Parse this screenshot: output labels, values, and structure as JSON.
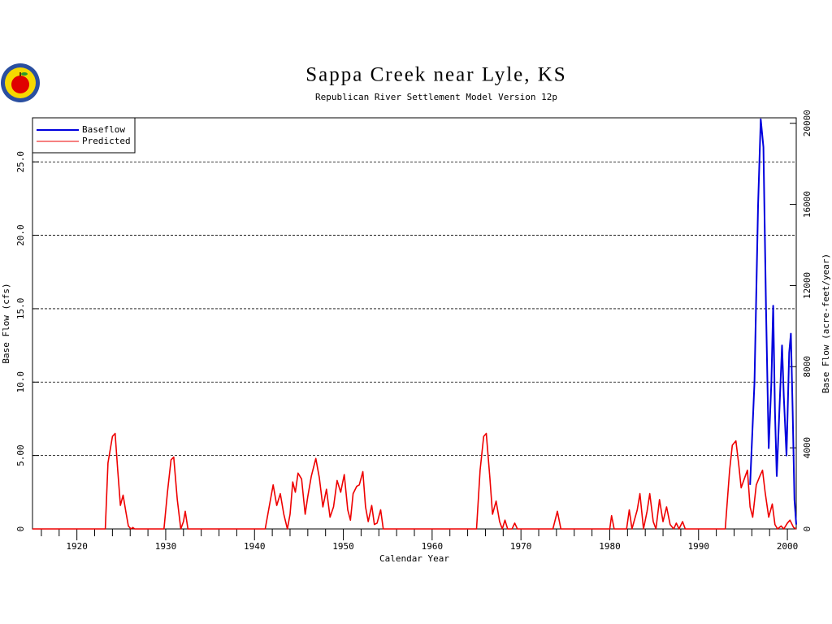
{
  "chart_data": {
    "type": "line",
    "title": "Sappa Creek near Lyle, KS",
    "subtitle": "Republican River Settlement Model Version 12p",
    "xlabel": "Calendar Year",
    "ylabel": "Base Flow (cfs)",
    "y2label": "Base Flow (acre-feet/year)",
    "xlim": [
      1915,
      2001
    ],
    "xticks": [
      1920,
      1930,
      1940,
      1950,
      1960,
      1970,
      1980,
      1990,
      2000
    ],
    "xminorticks": [
      1916,
      1918,
      1922,
      1924,
      1926,
      1928,
      1932,
      1934,
      1936,
      1938,
      1942,
      1944,
      1946,
      1948,
      1952,
      1954,
      1956,
      1958,
      1962,
      1964,
      1966,
      1968,
      1972,
      1974,
      1976,
      1978,
      1982,
      1984,
      1986,
      1988,
      1992,
      1994,
      1996,
      1998
    ],
    "ylim": [
      0,
      28
    ],
    "yticks": [
      0,
      {
        "value": 5,
        "label": "5.00"
      },
      {
        "value": 10,
        "label": "10.0"
      },
      {
        "value": 15,
        "label": "15.0"
      },
      {
        "value": 20,
        "label": "20.0"
      },
      {
        "value": 25,
        "label": "25.0"
      }
    ],
    "y2lim": [
      0,
      20270
    ],
    "y2ticks": [
      0,
      4000,
      8000,
      12000,
      16000,
      20000
    ],
    "grid": true,
    "legend": "upper left",
    "series": [
      {
        "name": "Baseflow",
        "color": "#0000dd",
        "x": [
          1995.8,
          1996.3,
          1996.7,
          1997.0,
          1997.3,
          1997.6,
          1997.9,
          1998.2,
          1998.4,
          1998.6,
          1998.8,
          1999.1,
          1999.4,
          1999.6,
          1999.9,
          2000.2,
          2000.4,
          2000.6,
          2000.8,
          2001.0
        ],
        "values": [
          3.0,
          10,
          22,
          27.9,
          26,
          15,
          5.5,
          10,
          15.2,
          8,
          3.6,
          8,
          12.5,
          9,
          5,
          12,
          13.3,
          8,
          2,
          0.3
        ]
      },
      {
        "name": "Predicted",
        "color": "#ee0000",
        "x": [
          1915,
          1923.2,
          1923.5,
          1924.0,
          1924.3,
          1924.6,
          1924.9,
          1925.2,
          1925.5,
          1925.8,
          1926.1,
          1926.3,
          1926.5,
          1929.8,
          1930.2,
          1930.6,
          1930.9,
          1931.3,
          1931.7,
          1932.0,
          1932.2,
          1932.5,
          1941.2,
          1941.8,
          1942.1,
          1942.5,
          1942.9,
          1943.3,
          1943.7,
          1944.0,
          1944.3,
          1944.6,
          1944.9,
          1945.3,
          1945.7,
          1946.0,
          1946.4,
          1946.9,
          1947.3,
          1947.7,
          1948.1,
          1948.5,
          1948.9,
          1949.3,
          1949.7,
          1950.1,
          1950.5,
          1950.8,
          1951.1,
          1951.5,
          1951.8,
          1952.2,
          1952.5,
          1952.8,
          1953.2,
          1953.5,
          1953.8,
          1954.2,
          1954.5,
          1965.0,
          1965.4,
          1965.8,
          1966.1,
          1966.5,
          1966.8,
          1967.2,
          1967.6,
          1967.9,
          1968.2,
          1968.5,
          1969.0,
          1969.3,
          1969.6,
          1973.6,
          1974.1,
          1974.5,
          1980.0,
          1980.2,
          1980.5,
          1981.9,
          1982.2,
          1982.5,
          1983.1,
          1983.4,
          1983.8,
          1984.2,
          1984.5,
          1984.9,
          1985.2,
          1985.6,
          1986.0,
          1986.4,
          1986.8,
          1987.2,
          1987.5,
          1987.8,
          1988.2,
          1988.5,
          1993.0,
          1993.5,
          1993.8,
          1994.2,
          1994.5,
          1994.8,
          1995.2,
          1995.5,
          1995.8,
          1996.1,
          1996.5,
          1996.9,
          1997.2,
          1997.5,
          1997.9,
          1998.3,
          1998.6,
          1998.9,
          1999.3,
          1999.6,
          2000.0,
          2000.3,
          2000.7,
          2001.0
        ],
        "values": [
          0,
          0,
          4.5,
          6.3,
          6.5,
          4,
          1.6,
          2.3,
          1.2,
          0.2,
          0,
          0.1,
          0,
          0,
          2.5,
          4.7,
          4.9,
          2,
          0,
          0.5,
          1.2,
          0,
          0,
          2,
          3.0,
          1.6,
          2.4,
          1.0,
          0,
          1.0,
          3.2,
          2.5,
          3.8,
          3.4,
          1.0,
          2.2,
          3.6,
          4.8,
          3.5,
          1.5,
          2.7,
          0.8,
          1.5,
          3.3,
          2.5,
          3.7,
          1.3,
          0.6,
          2.4,
          2.9,
          3.0,
          3.9,
          1.5,
          0.5,
          1.6,
          0.3,
          0.4,
          1.3,
          0,
          0,
          4.0,
          6.3,
          6.5,
          3.5,
          1.0,
          1.9,
          0.5,
          0,
          0.6,
          0,
          0,
          0.4,
          0,
          0,
          1.2,
          0,
          0,
          0.9,
          0,
          0,
          1.3,
          0,
          1.3,
          2.4,
          0,
          1.2,
          2.4,
          0.5,
          0,
          2.0,
          0.5,
          1.5,
          0.3,
          0,
          0.4,
          0,
          0.5,
          0,
          0,
          4.0,
          5.7,
          6.0,
          4.5,
          2.8,
          3.5,
          4.0,
          1.5,
          0.8,
          3.0,
          3.6,
          4.0,
          2.5,
          0.8,
          1.7,
          0.3,
          0,
          0.2,
          0,
          0.4,
          0.6,
          0.1,
          0
        ]
      }
    ]
  }
}
